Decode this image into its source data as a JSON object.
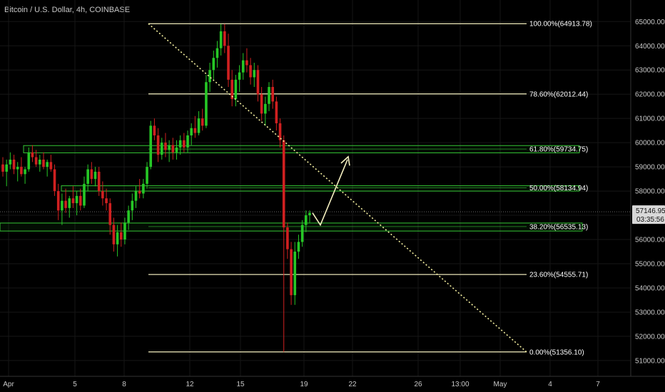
{
  "header": {
    "title": "Bitcoin / U.S. Dollar, 4h, COINBASE"
  },
  "colors": {
    "background": "#000000",
    "grid": "#161616",
    "up_candle": "#26c826",
    "down_candle": "#d02020",
    "fib_line": "#f5f0c0",
    "zone_border": "#35c435",
    "trendline": "#f5f0a0",
    "arrow": "#f5f0c0",
    "price_badge": "#d8d8d8"
  },
  "price_badge": {
    "price": "57146.95",
    "countdown": "03:35:56"
  },
  "chart_data": {
    "type": "candlestick",
    "y_axis": {
      "ticks": [
        "65000.00",
        "64000.00",
        "63000.00",
        "62000.00",
        "61000.00",
        "60000.00",
        "59000.00",
        "58000.00",
        "57000.00",
        "56000.00",
        "55000.00",
        "54000.00",
        "53000.00",
        "52000.00",
        "51000.00"
      ],
      "ylim": [
        50800,
        65400
      ]
    },
    "x_axis": {
      "ticks": [
        "Apr",
        "5",
        "8",
        "12",
        "15",
        "19",
        "22",
        "26",
        "13:00",
        "May",
        "4",
        "7"
      ]
    },
    "fib_levels": [
      {
        "label": "100.00%(64913.78)",
        "value": 64913.78,
        "boxed": false
      },
      {
        "label": "78.60%(62012.44)",
        "value": 62012.44,
        "boxed": false
      },
      {
        "label": "61.80%(59734.75)",
        "value": 59734.75,
        "boxed": true
      },
      {
        "label": "50.00%(58134.94)",
        "value": 58134.94,
        "boxed": true
      },
      {
        "label": "38.20%(56535.13)",
        "value": 56535.13,
        "boxed": true
      },
      {
        "label": "23.60%(54555.71)",
        "value": 54555.71,
        "boxed": false
      },
      {
        "label": "0.00%(51356.10)",
        "value": 51356.1,
        "boxed": false
      }
    ],
    "zones": [
      {
        "low": 59580,
        "high": 59880
      },
      {
        "low": 58000,
        "high": 58220
      },
      {
        "low": 56350,
        "high": 56680
      }
    ],
    "candles": [
      {
        "o": 59100,
        "h": 59400,
        "l": 58600,
        "c": 58800
      },
      {
        "o": 58800,
        "h": 59300,
        "l": 58200,
        "c": 59100
      },
      {
        "o": 59100,
        "h": 59600,
        "l": 58900,
        "c": 59300
      },
      {
        "o": 59300,
        "h": 59500,
        "l": 58700,
        "c": 58900
      },
      {
        "o": 58900,
        "h": 59200,
        "l": 58400,
        "c": 59000
      },
      {
        "o": 59000,
        "h": 59400,
        "l": 58600,
        "c": 58700
      },
      {
        "o": 58700,
        "h": 59000,
        "l": 58300,
        "c": 58900
      },
      {
        "o": 58900,
        "h": 59800,
        "l": 58800,
        "c": 59600
      },
      {
        "o": 59600,
        "h": 59900,
        "l": 59200,
        "c": 59400
      },
      {
        "o": 59400,
        "h": 59700,
        "l": 59000,
        "c": 59100
      },
      {
        "o": 59100,
        "h": 59500,
        "l": 58800,
        "c": 59300
      },
      {
        "o": 59300,
        "h": 59600,
        "l": 58900,
        "c": 59000
      },
      {
        "o": 59000,
        "h": 59300,
        "l": 58600,
        "c": 59200
      },
      {
        "o": 59200,
        "h": 59500,
        "l": 58800,
        "c": 58900
      },
      {
        "o": 58900,
        "h": 59100,
        "l": 57800,
        "c": 58000
      },
      {
        "o": 58000,
        "h": 58300,
        "l": 56800,
        "c": 57200
      },
      {
        "o": 57200,
        "h": 57900,
        "l": 56600,
        "c": 57600
      },
      {
        "o": 57600,
        "h": 58100,
        "l": 57100,
        "c": 57300
      },
      {
        "o": 57300,
        "h": 57800,
        "l": 56900,
        "c": 57700
      },
      {
        "o": 57700,
        "h": 58200,
        "l": 57300,
        "c": 57500
      },
      {
        "o": 57500,
        "h": 58000,
        "l": 57000,
        "c": 57800
      },
      {
        "o": 57800,
        "h": 58100,
        "l": 57200,
        "c": 57400
      },
      {
        "o": 57400,
        "h": 58600,
        "l": 57300,
        "c": 58300
      },
      {
        "o": 58300,
        "h": 59100,
        "l": 58000,
        "c": 58900
      },
      {
        "o": 58900,
        "h": 59200,
        "l": 58300,
        "c": 58500
      },
      {
        "o": 58500,
        "h": 59000,
        "l": 58200,
        "c": 58800
      },
      {
        "o": 58800,
        "h": 59000,
        "l": 57800,
        "c": 58000
      },
      {
        "o": 58000,
        "h": 58400,
        "l": 57400,
        "c": 57700
      },
      {
        "o": 57700,
        "h": 58100,
        "l": 57200,
        "c": 57500
      },
      {
        "o": 57500,
        "h": 57700,
        "l": 56200,
        "c": 56600
      },
      {
        "o": 56600,
        "h": 56900,
        "l": 55500,
        "c": 55800
      },
      {
        "o": 55800,
        "h": 56600,
        "l": 55300,
        "c": 56300
      },
      {
        "o": 56300,
        "h": 56700,
        "l": 55700,
        "c": 56000
      },
      {
        "o": 56000,
        "h": 56900,
        "l": 55800,
        "c": 56700
      },
      {
        "o": 56700,
        "h": 57400,
        "l": 56400,
        "c": 57200
      },
      {
        "o": 57200,
        "h": 57900,
        "l": 56800,
        "c": 57600
      },
      {
        "o": 57600,
        "h": 58200,
        "l": 57300,
        "c": 58000
      },
      {
        "o": 58000,
        "h": 58500,
        "l": 57700,
        "c": 57900
      },
      {
        "o": 57900,
        "h": 58500,
        "l": 57700,
        "c": 58300
      },
      {
        "o": 58300,
        "h": 59200,
        "l": 58100,
        "c": 59000
      },
      {
        "o": 59000,
        "h": 60900,
        "l": 58900,
        "c": 60700
      },
      {
        "o": 60700,
        "h": 61000,
        "l": 60100,
        "c": 60300
      },
      {
        "o": 60300,
        "h": 60600,
        "l": 59200,
        "c": 59500
      },
      {
        "o": 59500,
        "h": 60200,
        "l": 59300,
        "c": 60000
      },
      {
        "o": 60000,
        "h": 60400,
        "l": 59400,
        "c": 59700
      },
      {
        "o": 59700,
        "h": 60100,
        "l": 59200,
        "c": 59900
      },
      {
        "o": 59900,
        "h": 60200,
        "l": 59300,
        "c": 59600
      },
      {
        "o": 59600,
        "h": 60100,
        "l": 59300,
        "c": 59800
      },
      {
        "o": 59800,
        "h": 60300,
        "l": 59500,
        "c": 60100
      },
      {
        "o": 60100,
        "h": 60400,
        "l": 59600,
        "c": 59800
      },
      {
        "o": 59800,
        "h": 60500,
        "l": 59600,
        "c": 60300
      },
      {
        "o": 60300,
        "h": 60800,
        "l": 59900,
        "c": 60600
      },
      {
        "o": 60600,
        "h": 61100,
        "l": 60200,
        "c": 60400
      },
      {
        "o": 60400,
        "h": 61300,
        "l": 60300,
        "c": 61000
      },
      {
        "o": 61000,
        "h": 61400,
        "l": 60500,
        "c": 60700
      },
      {
        "o": 60700,
        "h": 62800,
        "l": 60600,
        "c": 62500
      },
      {
        "o": 62500,
        "h": 63300,
        "l": 62100,
        "c": 63000
      },
      {
        "o": 63000,
        "h": 63800,
        "l": 62600,
        "c": 63500
      },
      {
        "o": 63500,
        "h": 64200,
        "l": 63100,
        "c": 63900
      },
      {
        "o": 63900,
        "h": 64900,
        "l": 63600,
        "c": 64600
      },
      {
        "o": 64600,
        "h": 64900,
        "l": 63700,
        "c": 64000
      },
      {
        "o": 64000,
        "h": 64500,
        "l": 62300,
        "c": 62600
      },
      {
        "o": 62600,
        "h": 63000,
        "l": 61500,
        "c": 61800
      },
      {
        "o": 61800,
        "h": 62800,
        "l": 61500,
        "c": 62600
      },
      {
        "o": 62600,
        "h": 63200,
        "l": 62100,
        "c": 62900
      },
      {
        "o": 62900,
        "h": 63700,
        "l": 62600,
        "c": 63400
      },
      {
        "o": 63400,
        "h": 63900,
        "l": 62900,
        "c": 63200
      },
      {
        "o": 63200,
        "h": 63500,
        "l": 62400,
        "c": 62700
      },
      {
        "o": 62700,
        "h": 63300,
        "l": 62300,
        "c": 63000
      },
      {
        "o": 63000,
        "h": 63200,
        "l": 61700,
        "c": 62000
      },
      {
        "o": 62000,
        "h": 62300,
        "l": 60900,
        "c": 61200
      },
      {
        "o": 61200,
        "h": 61900,
        "l": 60700,
        "c": 61600
      },
      {
        "o": 61600,
        "h": 62500,
        "l": 61300,
        "c": 62300
      },
      {
        "o": 62300,
        "h": 62600,
        "l": 61400,
        "c": 61700
      },
      {
        "o": 61700,
        "h": 61900,
        "l": 60500,
        "c": 60800
      },
      {
        "o": 60800,
        "h": 61000,
        "l": 59800,
        "c": 60100
      },
      {
        "o": 60100,
        "h": 60300,
        "l": 51356,
        "c": 56500
      },
      {
        "o": 56500,
        "h": 56700,
        "l": 55200,
        "c": 55600
      },
      {
        "o": 55600,
        "h": 55900,
        "l": 53300,
        "c": 53700
      },
      {
        "o": 53700,
        "h": 55900,
        "l": 53300,
        "c": 55500
      },
      {
        "o": 55500,
        "h": 56200,
        "l": 55200,
        "c": 55900
      },
      {
        "o": 55900,
        "h": 56800,
        "l": 55700,
        "c": 56600
      },
      {
        "o": 56600,
        "h": 57200,
        "l": 56300,
        "c": 57000
      },
      {
        "o": 57000,
        "h": 57200,
        "l": 56700,
        "c": 57100
      }
    ],
    "annotations": {
      "trendline": "dotted diagonal from 100.00% level to 0.00% level",
      "arrow": "projection from 38.20% zone up toward 61.80% zone"
    }
  }
}
